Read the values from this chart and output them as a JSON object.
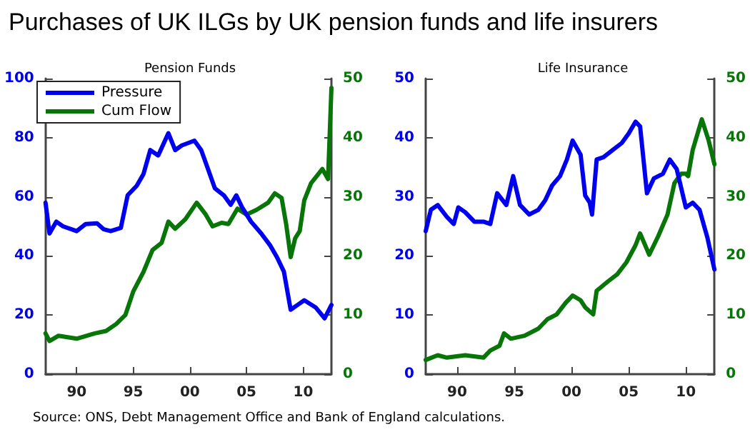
{
  "chart_data": [
    {
      "type": "line",
      "title": "Purchases of UK ILGs by UK pension funds and life insurers",
      "subtitle": "Pension Funds",
      "annotations": [
        "Source: ONS, Debt Management Office and Bank of England calculations."
      ],
      "xlim": [
        1987.25,
        2012.5
      ],
      "xticks": [
        {
          "value": 1990,
          "label": "90"
        },
        {
          "value": 1995,
          "label": "95"
        },
        {
          "value": 2000,
          "label": "00"
        },
        {
          "value": 2005,
          "label": "05"
        },
        {
          "value": 2010,
          "label": "10"
        }
      ],
      "ylim": [
        0,
        100
      ],
      "yticks": [
        0,
        20,
        40,
        60,
        80,
        100
      ],
      "y2lim": [
        0,
        50
      ],
      "y2ticks": [
        0,
        10,
        20,
        30,
        40,
        50
      ],
      "grid": false,
      "legend": "top left",
      "series": [
        {
          "name": "Pressure",
          "color": "#0000f0",
          "x": [
            1987.25,
            1987.6,
            1988.2,
            1988.8,
            1990,
            1990.8,
            1991.8,
            1992.4,
            1993,
            1993.9,
            1994.5,
            1995.3,
            1995.9,
            1996.5,
            1997.2,
            1998.1,
            1998.7,
            1999.3,
            2000.4,
            2001,
            2001.6,
            2002.2,
            2003,
            2003.6,
            2004.1,
            2004.6,
            2005.4,
            2006.3,
            2007.1,
            2007.7,
            2008.3,
            2008.9,
            2009.5,
            2010.1,
            2011.1,
            2011.9,
            2012.5
          ],
          "values": [
            58,
            47.6,
            51.6,
            50,
            48.4,
            50.8,
            51,
            49,
            48.4,
            49.5,
            60.5,
            63.7,
            67.7,
            75.8,
            74,
            81.5,
            75.8,
            77.4,
            79,
            75.8,
            69.4,
            62.9,
            60.5,
            57.3,
            60.5,
            56.5,
            51.6,
            47.6,
            43.5,
            39.5,
            34.7,
            21.8,
            23.4,
            25,
            22.6,
            18.9,
            23.4
          ]
        },
        {
          "name": "Cum Flow",
          "color": "#087508",
          "axis": "y2",
          "x": [
            1987.25,
            1987.6,
            1988.4,
            1990,
            1991.6,
            1992.6,
            1993.5,
            1994.3,
            1995,
            1995.9,
            1996.7,
            1997.5,
            1998.1,
            1998.7,
            1999.6,
            2000.6,
            2001.4,
            2002,
            2002.8,
            2003.4,
            2004.2,
            2005,
            2005.9,
            2006.9,
            2007.5,
            2008.1,
            2008.5,
            2008.9,
            2009.3,
            2009.7,
            2010.1,
            2010.7,
            2011.7,
            2012.2,
            2012.5
          ],
          "values": [
            6.9,
            5.6,
            6.5,
            6,
            6.9,
            7.3,
            8.5,
            10,
            14,
            17.3,
            21,
            22.2,
            25.8,
            24.6,
            26.2,
            29,
            27,
            25,
            25.6,
            25.4,
            28,
            27,
            27.8,
            29,
            30.6,
            29.8,
            25.4,
            19.8,
            23,
            24.2,
            29.4,
            32.3,
            34.7,
            33,
            48.4
          ]
        }
      ]
    },
    {
      "type": "line",
      "subtitle": "Life Insurance",
      "xlim": [
        1987.25,
        2012.5
      ],
      "xticks": [
        {
          "value": 1990,
          "label": "90"
        },
        {
          "value": 1995,
          "label": "95"
        },
        {
          "value": 2000,
          "label": "00"
        },
        {
          "value": 2005,
          "label": "05"
        },
        {
          "value": 2010,
          "label": "10"
        }
      ],
      "ylim": [
        0,
        50
      ],
      "yticks": [
        0,
        10,
        20,
        30,
        40,
        50
      ],
      "y2lim": [
        0,
        50
      ],
      "y2ticks": [
        0,
        10,
        20,
        30,
        40,
        50
      ],
      "grid": false,
      "series": [
        {
          "color": "#0000f0",
          "x": [
            1987.25,
            1987.7,
            1988.3,
            1989.1,
            1989.7,
            1990.1,
            1990.7,
            1991.5,
            1992.3,
            1992.9,
            1993.5,
            1994.3,
            1994.9,
            1995.5,
            1996.3,
            1997.1,
            1997.7,
            1998.3,
            1999,
            1999.6,
            2000.1,
            2000.8,
            2001.2,
            2001.6,
            2001.8,
            2002.2,
            2002.8,
            2003.6,
            2004.4,
            2005,
            2005.6,
            2006,
            2006.6,
            2007.2,
            2008,
            2008.6,
            2009.2,
            2010,
            2010.6,
            2011.2,
            2011.9,
            2012.5
          ],
          "values": [
            24.2,
            27.8,
            28.6,
            26.6,
            25.4,
            28.2,
            27.4,
            25.8,
            25.8,
            25.4,
            30.6,
            28.6,
            33.5,
            28.6,
            27,
            27.8,
            29.4,
            31.9,
            33.5,
            36.3,
            39.5,
            37.1,
            30.2,
            29,
            27,
            36.3,
            36.7,
            37.9,
            39.1,
            40.7,
            42.7,
            41.9,
            30.6,
            33.1,
            33.9,
            36.3,
            34.7,
            28.2,
            29,
            27.8,
            23,
            17.7
          ]
        },
        {
          "color": "#087508",
          "axis": "y2",
          "x": [
            1987.25,
            1988.3,
            1989.1,
            1990.7,
            1992.3,
            1992.9,
            1993.7,
            1994.1,
            1994.7,
            1995.9,
            1997.1,
            1997.9,
            1998.7,
            1999.5,
            2000.1,
            2000.8,
            2001.2,
            2001.9,
            2002.2,
            2003.2,
            2004,
            2004.8,
            2005.6,
            2006,
            2006.8,
            2007.6,
            2008.4,
            2009,
            2009.6,
            2010,
            2010.2,
            2010.6,
            2011.4,
            2012,
            2012.5
          ],
          "values": [
            2.4,
            3.2,
            2.8,
            3.2,
            2.8,
            4,
            4.8,
            6.9,
            6,
            6.5,
            7.7,
            9.3,
            10.1,
            12.1,
            13.3,
            12.5,
            11.3,
            10.1,
            14.1,
            15.7,
            16.9,
            18.9,
            21.8,
            23.8,
            20.2,
            23.4,
            27,
            32.3,
            33.9,
            33.9,
            33.5,
            37.9,
            43.1,
            39.5,
            35.5
          ]
        }
      ]
    }
  ]
}
